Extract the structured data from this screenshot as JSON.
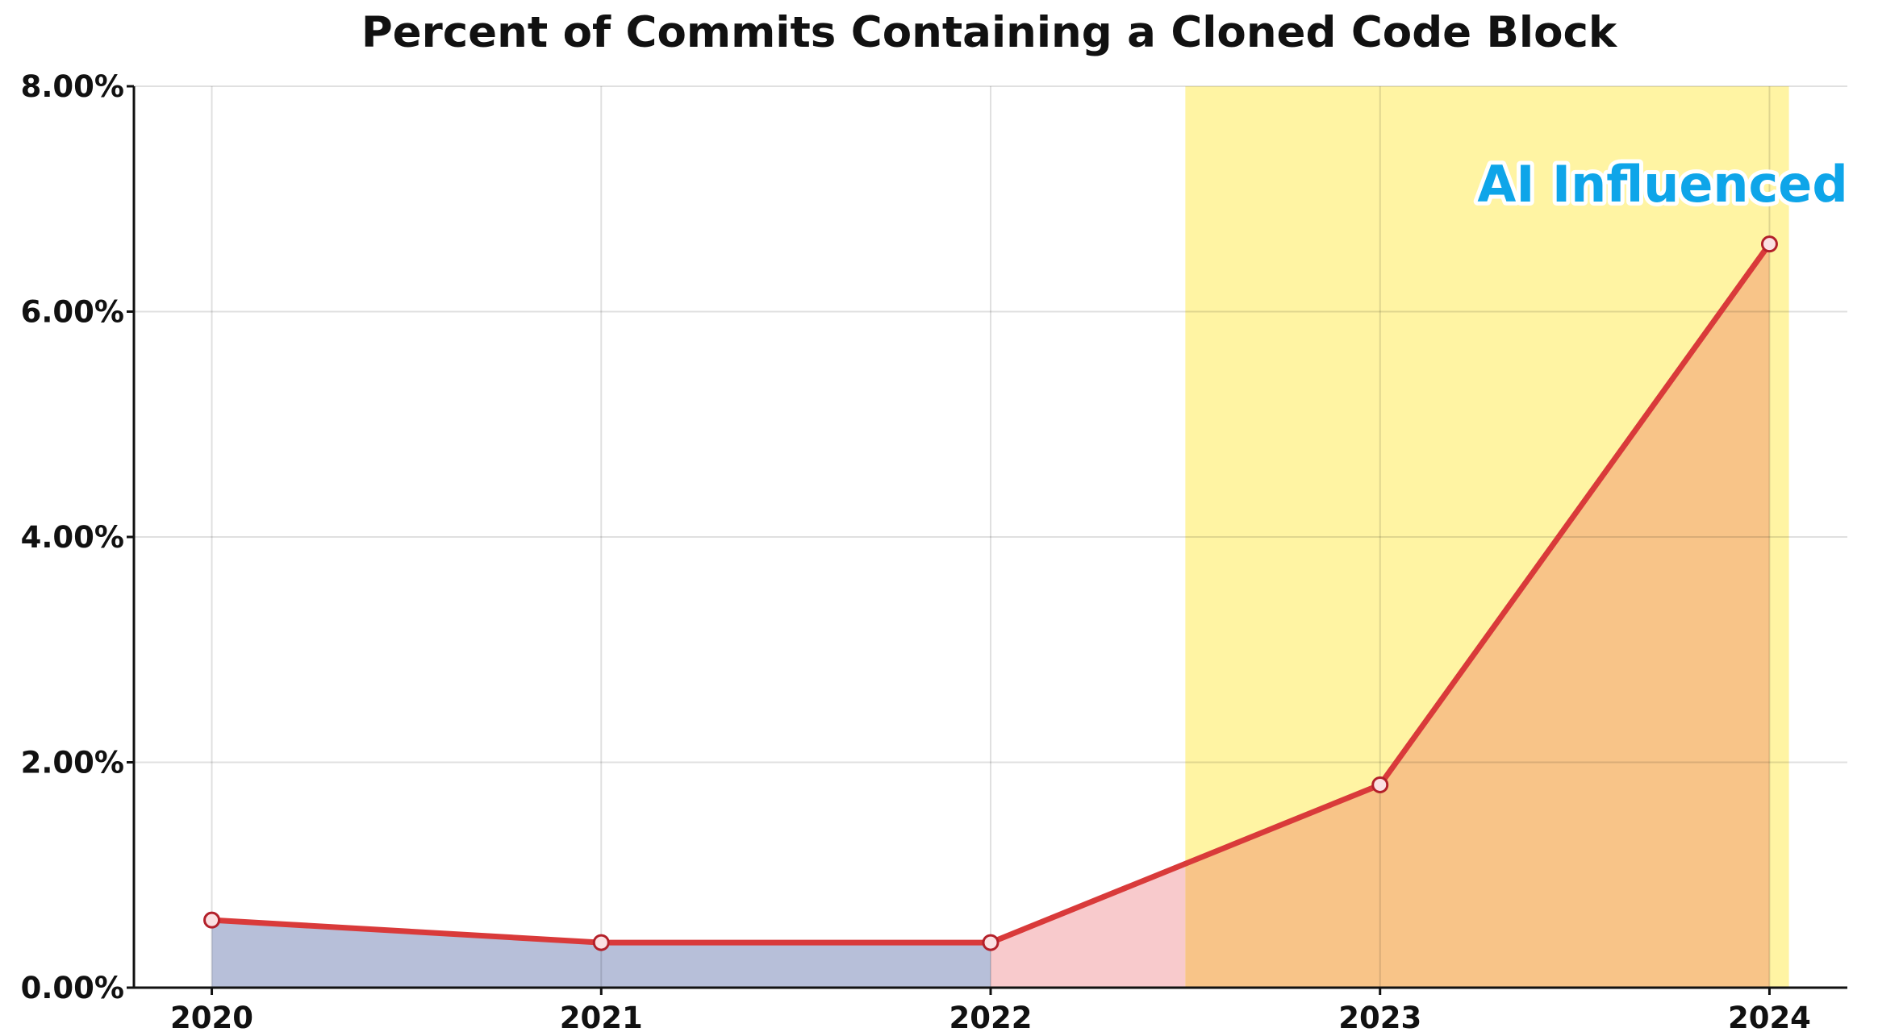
{
  "chart_data": {
    "type": "line",
    "title": "Percent of Commits Containing a Cloned Code Block",
    "xlabel": "",
    "ylabel": "",
    "x": [
      2020,
      2021,
      2022,
      2023,
      2024
    ],
    "x_tick_labels": [
      "2020",
      "2021",
      "2022",
      "2023",
      "2024"
    ],
    "series": [
      {
        "values": [
          0.6,
          0.4,
          0.4,
          1.8,
          6.6
        ],
        "color": "#d93a3a"
      }
    ],
    "y_unit_suffix": "%",
    "ylim": [
      0,
      8
    ],
    "y_ticks": [
      0,
      2,
      4,
      6,
      8
    ],
    "y_tick_labels": [
      "0.00%",
      "2.00%",
      "4.00%",
      "6.00%",
      "8.00%"
    ],
    "xlim": [
      2019.8,
      2024.2
    ],
    "grid": true,
    "shaded_fill_segments": [
      {
        "from": 2020,
        "to": 2022,
        "color": "#b7bfd9"
      },
      {
        "from": 2022,
        "to": 2024,
        "color": "#f8cacc"
      }
    ],
    "highlight_region": {
      "from": 2022.5,
      "to": 2024.05,
      "color": "#fff4a3",
      "overlap_color": "#f8c488"
    },
    "annotation": {
      "text": "AI Influenced",
      "x": 2023.25,
      "y": 7.15,
      "color": "#0ea5e9"
    }
  }
}
